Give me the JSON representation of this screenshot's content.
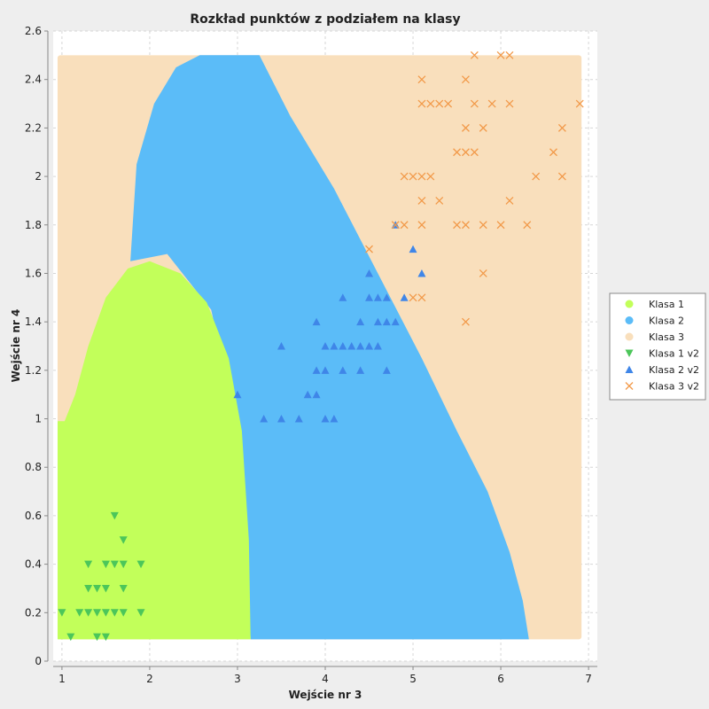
{
  "chart_data": {
    "type": "scatter",
    "title": "Rozkład punktów z podziałem na klasy",
    "xlabel": "Wejście nr 3",
    "ylabel": "Wejście nr 4",
    "xlim": [
      0.9,
      7.1
    ],
    "ylim": [
      0,
      2.6
    ],
    "x_ticks": [
      "1",
      "2",
      "3",
      "4",
      "5",
      "6",
      "7"
    ],
    "y_ticks": [
      "0",
      "0.2",
      "0.4",
      "0.6",
      "0.8",
      "1",
      "1.2",
      "1.4",
      "1.6",
      "1.8",
      "2",
      "2.2",
      "2.4",
      "2.6"
    ],
    "grid": true,
    "legend_position": "right",
    "legend": [
      "Klasa 1",
      "Klasa 2",
      "Klasa 3",
      "Klasa 1 v2",
      "Klasa 2 v2",
      "Klasa 3 v2"
    ],
    "colors": {
      "klasa1": "#c2ff5a",
      "klasa2": "#5bbcf8",
      "klasa3": "#f9dfbc",
      "klasa1_v2": "#4cc65a",
      "klasa2_v2": "#3f86e8",
      "klasa3_v2": "#f29a4a"
    },
    "series": [
      {
        "name": "Klasa 1 v2",
        "marker": "triangle-down",
        "points": [
          [
            1.0,
            0.2
          ],
          [
            1.1,
            0.1
          ],
          [
            1.2,
            0.2
          ],
          [
            1.3,
            0.2
          ],
          [
            1.3,
            0.3
          ],
          [
            1.3,
            0.4
          ],
          [
            1.4,
            0.1
          ],
          [
            1.4,
            0.2
          ],
          [
            1.4,
            0.3
          ],
          [
            1.5,
            0.1
          ],
          [
            1.5,
            0.2
          ],
          [
            1.5,
            0.3
          ],
          [
            1.5,
            0.4
          ],
          [
            1.6,
            0.2
          ],
          [
            1.6,
            0.4
          ],
          [
            1.6,
            0.6
          ],
          [
            1.7,
            0.2
          ],
          [
            1.7,
            0.3
          ],
          [
            1.7,
            0.4
          ],
          [
            1.7,
            0.5
          ],
          [
            1.9,
            0.2
          ],
          [
            1.9,
            0.4
          ]
        ]
      },
      {
        "name": "Klasa 2 v2",
        "marker": "triangle-up",
        "points": [
          [
            3.0,
            1.1
          ],
          [
            3.3,
            1.0
          ],
          [
            3.5,
            1.0
          ],
          [
            3.5,
            1.3
          ],
          [
            3.7,
            1.0
          ],
          [
            3.8,
            1.1
          ],
          [
            3.9,
            1.1
          ],
          [
            3.9,
            1.2
          ],
          [
            3.9,
            1.4
          ],
          [
            4.0,
            1.0
          ],
          [
            4.0,
            1.2
          ],
          [
            4.0,
            1.3
          ],
          [
            4.1,
            1.0
          ],
          [
            4.1,
            1.3
          ],
          [
            4.2,
            1.2
          ],
          [
            4.2,
            1.3
          ],
          [
            4.2,
            1.5
          ],
          [
            4.3,
            1.3
          ],
          [
            4.4,
            1.2
          ],
          [
            4.4,
            1.3
          ],
          [
            4.4,
            1.4
          ],
          [
            4.5,
            1.3
          ],
          [
            4.5,
            1.5
          ],
          [
            4.5,
            1.6
          ],
          [
            4.6,
            1.3
          ],
          [
            4.6,
            1.4
          ],
          [
            4.6,
            1.5
          ],
          [
            4.7,
            1.2
          ],
          [
            4.7,
            1.4
          ],
          [
            4.7,
            1.5
          ],
          [
            4.8,
            1.4
          ],
          [
            4.8,
            1.8
          ],
          [
            4.9,
            1.5
          ],
          [
            5.0,
            1.7
          ],
          [
            5.1,
            1.6
          ]
        ]
      },
      {
        "name": "Klasa 3 v2",
        "marker": "x",
        "points": [
          [
            4.5,
            1.7
          ],
          [
            4.8,
            1.8
          ],
          [
            4.9,
            1.8
          ],
          [
            4.9,
            2.0
          ],
          [
            5.0,
            1.5
          ],
          [
            5.0,
            2.0
          ],
          [
            5.1,
            1.5
          ],
          [
            5.1,
            1.8
          ],
          [
            5.1,
            1.9
          ],
          [
            5.1,
            2.0
          ],
          [
            5.1,
            2.3
          ],
          [
            5.1,
            2.4
          ],
          [
            5.2,
            2.0
          ],
          [
            5.2,
            2.3
          ],
          [
            5.3,
            1.9
          ],
          [
            5.3,
            2.3
          ],
          [
            5.4,
            2.3
          ],
          [
            5.5,
            1.8
          ],
          [
            5.5,
            2.1
          ],
          [
            5.6,
            1.4
          ],
          [
            5.6,
            1.8
          ],
          [
            5.6,
            2.1
          ],
          [
            5.6,
            2.2
          ],
          [
            5.6,
            2.4
          ],
          [
            5.7,
            2.1
          ],
          [
            5.7,
            2.3
          ],
          [
            5.7,
            2.5
          ],
          [
            5.8,
            1.6
          ],
          [
            5.8,
            1.8
          ],
          [
            5.8,
            2.2
          ],
          [
            5.9,
            2.3
          ],
          [
            6.0,
            1.8
          ],
          [
            6.0,
            2.5
          ],
          [
            6.1,
            1.9
          ],
          [
            6.1,
            2.3
          ],
          [
            6.1,
            2.5
          ],
          [
            6.3,
            1.8
          ],
          [
            6.4,
            2.0
          ],
          [
            6.6,
            2.1
          ],
          [
            6.7,
            2.0
          ],
          [
            6.7,
            2.2
          ],
          [
            6.9,
            2.3
          ]
        ]
      }
    ]
  }
}
